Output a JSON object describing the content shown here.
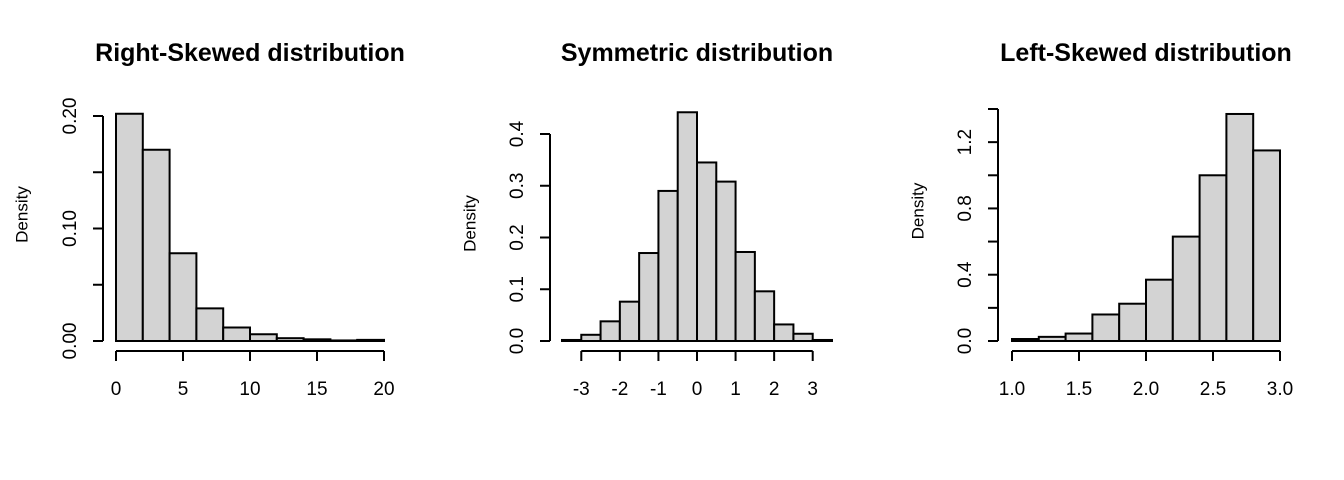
{
  "colors": {
    "bar_fill": "#d3d3d3",
    "bar_stroke": "#000000",
    "background": "#ffffff"
  },
  "chart_data": [
    {
      "type": "bar",
      "title": "Right-Skewed distribution",
      "xlabel": "",
      "ylabel": "Density",
      "bin_edges": [
        0,
        2,
        4,
        6,
        8,
        10,
        12,
        14,
        16,
        18,
        20
      ],
      "values": [
        0.202,
        0.17,
        0.078,
        0.029,
        0.012,
        0.006,
        0.0025,
        0.0015,
        0.0005,
        0.001
      ],
      "xlim": [
        0,
        20
      ],
      "ylim": [
        0,
        0.2
      ],
      "xticks": [
        0,
        5,
        10,
        15,
        20
      ],
      "xtick_labels": [
        "0",
        "5",
        "10",
        "15",
        "20"
      ],
      "yticks": [
        0,
        0.05,
        0.1,
        0.15,
        0.2
      ],
      "ytick_labels": [
        "0.00",
        "",
        "0.10",
        "",
        "0.20"
      ],
      "grid": false
    },
    {
      "type": "bar",
      "title": "Symmetric distribution",
      "xlabel": "",
      "ylabel": "Density",
      "bin_edges": [
        -3.5,
        -3.0,
        -2.5,
        -2.0,
        -1.5,
        -1.0,
        -0.5,
        0.0,
        0.5,
        1.0,
        1.5,
        2.0,
        2.5,
        3.0,
        3.5
      ],
      "values": [
        0.002,
        0.012,
        0.038,
        0.076,
        0.17,
        0.29,
        0.442,
        0.345,
        0.308,
        0.172,
        0.096,
        0.032,
        0.014,
        0.002
      ],
      "xlim": [
        -3.5,
        3.5
      ],
      "ylim": [
        0,
        0.4
      ],
      "xticks": [
        -3,
        -2,
        -1,
        0,
        1,
        2,
        3
      ],
      "xtick_labels": [
        "-3",
        "-2",
        "-1",
        "0",
        "1",
        "2",
        "3"
      ],
      "yticks": [
        0,
        0.1,
        0.2,
        0.3,
        0.4
      ],
      "ytick_labels": [
        "0.0",
        "0.1",
        "0.2",
        "0.3",
        "0.4"
      ],
      "grid": false
    },
    {
      "type": "bar",
      "title": "Left-Skewed distribution",
      "xlabel": "",
      "ylabel": "Density",
      "bin_edges": [
        1.0,
        1.2,
        1.4,
        1.6,
        1.8,
        2.0,
        2.2,
        2.4,
        2.6,
        2.8,
        3.0
      ],
      "values": [
        0.012,
        0.025,
        0.045,
        0.16,
        0.225,
        0.37,
        0.63,
        1.0,
        1.37,
        1.15
      ],
      "xlim": [
        1.0,
        3.0
      ],
      "ylim": [
        0,
        1.4
      ],
      "xticks": [
        1.0,
        1.5,
        2.0,
        2.5,
        3.0
      ],
      "xtick_labels": [
        "1.0",
        "1.5",
        "2.0",
        "2.5",
        "3.0"
      ],
      "yticks": [
        0,
        0.2,
        0.4,
        0.6,
        0.8,
        1.0,
        1.2,
        1.4
      ],
      "ytick_labels": [
        "0.0",
        "",
        "0.4",
        "",
        "0.8",
        "",
        "1.2",
        ""
      ],
      "grid": false
    }
  ]
}
